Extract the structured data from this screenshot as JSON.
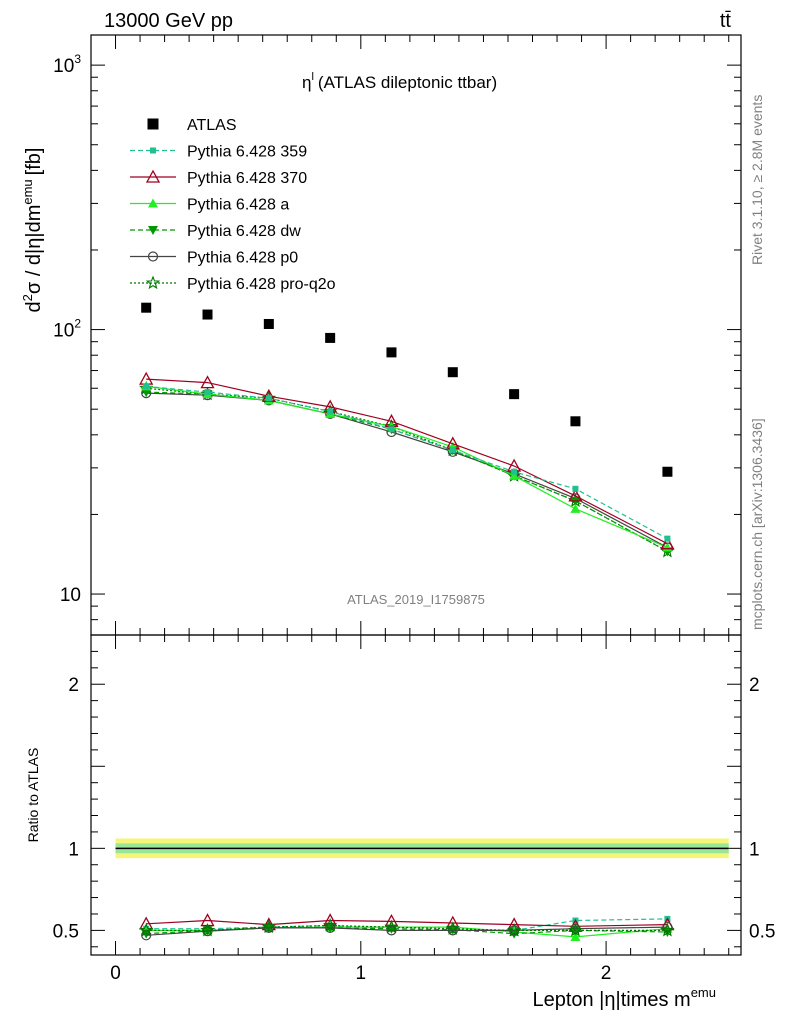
{
  "header": {
    "energy_label": "13000 GeV pp",
    "process_label": "tt̄"
  },
  "side_labels": {
    "rivet": "Rivet 3.1.10, ≥ 2.8M events",
    "site": "mcplots.cern.ch [arXiv:1306.3436]"
  },
  "chart_data": [
    {
      "type": "scatter",
      "title": "η",
      "title_sup": "l",
      "title_rest": "(ATLAS dileptonic ttbar)",
      "ylabel": "d²σ / d|η|dm^emu [fb]",
      "ylabel_parts": {
        "d": "d",
        "sup2": "2",
        "mid": "σ / d|η|dm",
        "sup_emu": "emu",
        "unit": "[fb]"
      },
      "watermark": "ATLAS_2019_I1759875",
      "y_scale": "log",
      "ylim": [
        7,
        1300
      ],
      "xlim": [
        -0.1,
        2.55
      ],
      "y_tick_labels": [
        {
          "value": 10,
          "base": "10",
          "exp": ""
        },
        {
          "value": 100,
          "base": "10",
          "exp": "2"
        },
        {
          "value": 1000,
          "base": "10",
          "exp": "3"
        }
      ],
      "x": [
        0.125,
        0.375,
        0.625,
        0.875,
        1.125,
        1.375,
        1.625,
        1.875,
        2.25
      ],
      "series": [
        {
          "name": "ATLAS",
          "marker": "square-filled",
          "line": "none",
          "color": "#000000",
          "values": [
            121,
            114,
            105,
            93,
            82,
            69,
            57,
            45,
            29
          ]
        },
        {
          "name": "Pythia 6.428 359",
          "marker": "square-small",
          "line": "dashed",
          "color": "#20c090",
          "values": [
            61,
            58,
            55,
            49,
            42,
            35,
            29,
            25,
            16.2
          ]
        },
        {
          "name": "Pythia 6.428 370",
          "marker": "triangle-open",
          "line": "solid",
          "color": "#a00020",
          "values": [
            65,
            63,
            56,
            51,
            45,
            37,
            30.5,
            23.5,
            15.5
          ]
        },
        {
          "name": "Pythia 6.428 a",
          "marker": "triangle-filled",
          "line": "solid",
          "color": "#22ee22",
          "values": [
            61,
            57,
            54,
            48,
            43,
            36,
            28,
            21,
            15
          ]
        },
        {
          "name": "Pythia 6.428 dw",
          "marker": "triangle-down",
          "line": "dashed",
          "color": "#009900",
          "values": [
            58,
            57,
            54,
            48,
            42,
            35,
            28,
            22.5,
            14.5
          ]
        },
        {
          "name": "Pythia 6.428 p0",
          "marker": "circle-open",
          "line": "solid",
          "color": "#444444",
          "values": [
            57.5,
            56.5,
            54,
            48,
            41,
            34.5,
            28.5,
            23,
            15
          ]
        },
        {
          "name": "Pythia 6.428 pro-q2o",
          "marker": "star",
          "line": "dotted",
          "color": "#007700",
          "values": [
            60,
            57,
            55,
            49,
            43,
            35,
            28,
            22.5,
            14.5
          ]
        }
      ]
    },
    {
      "type": "line",
      "ylabel": "Ratio to ATLAS",
      "xlabel": "Lepton |η|times m^emu",
      "xlabel_parts": {
        "main": "Lepton |η|times m",
        "sup": "emu"
      },
      "ylim": [
        0.35,
        2.3
      ],
      "xlim": [
        -0.1,
        2.55
      ],
      "x_tick_labels": [
        "0",
        "1",
        "2"
      ],
      "y_tick_labels": [
        "0.5",
        "1",
        "2"
      ],
      "x": [
        0.125,
        0.375,
        0.625,
        0.875,
        1.125,
        1.375,
        1.625,
        1.875,
        2.25
      ],
      "band": {
        "inner_halfwidth": 0.03,
        "outer_halfwidth": 0.06,
        "inner_color": "#99e699",
        "outer_color": "#f5f57a"
      },
      "series": [
        {
          "name": "Pythia 6.428 359",
          "values": [
            0.51,
            0.51,
            0.52,
            0.53,
            0.51,
            0.5,
            0.5,
            0.56,
            0.57
          ]
        },
        {
          "name": "Pythia 6.428 370",
          "values": [
            0.54,
            0.56,
            0.535,
            0.56,
            0.555,
            0.545,
            0.535,
            0.525,
            0.535
          ]
        },
        {
          "name": "Pythia 6.428 a",
          "values": [
            0.5,
            0.5,
            0.515,
            0.52,
            0.52,
            0.52,
            0.49,
            0.46,
            0.51
          ]
        },
        {
          "name": "Pythia 6.428 dw",
          "values": [
            0.48,
            0.5,
            0.515,
            0.515,
            0.51,
            0.505,
            0.48,
            0.5,
            0.49
          ]
        },
        {
          "name": "Pythia 6.428 p0",
          "values": [
            0.47,
            0.495,
            0.515,
            0.515,
            0.5,
            0.5,
            0.5,
            0.51,
            0.52
          ]
        },
        {
          "name": "Pythia 6.428 pro-q2o",
          "values": [
            0.5,
            0.5,
            0.52,
            0.53,
            0.52,
            0.51,
            0.5,
            0.5,
            0.5
          ]
        }
      ]
    }
  ]
}
